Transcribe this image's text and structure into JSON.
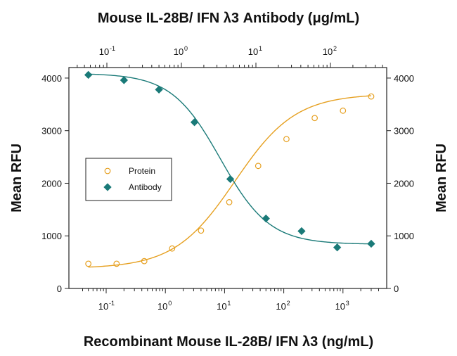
{
  "chart_data": {
    "type": "scatter",
    "title": "Mouse IL-28B/ IFN λ3 Antibody (μg/mL)",
    "xlabel": "Recombinant Mouse IL-28B/ IFN λ3 (ng/mL)",
    "ylabel": "Mean RFU",
    "ylabel_right": "Mean RFU",
    "x_scale": "log",
    "x_ticks": [
      {
        "base": "10",
        "exp": "-1",
        "value": 0.1
      },
      {
        "base": "10",
        "exp": "0",
        "value": 1
      },
      {
        "base": "10",
        "exp": "1",
        "value": 10
      },
      {
        "base": "10",
        "exp": "2",
        "value": 100
      },
      {
        "base": "10",
        "exp": "3",
        "value": 1000
      }
    ],
    "x2_ticks": [
      {
        "base": "10",
        "exp": "-1",
        "value": 0.1
      },
      {
        "base": "10",
        "exp": "0",
        "value": 1
      },
      {
        "base": "10",
        "exp": "1",
        "value": 10
      },
      {
        "base": "10",
        "exp": "2",
        "value": 100
      }
    ],
    "y_ticks": [
      "0",
      "1000",
      "2000",
      "3000",
      "4000"
    ],
    "y_tick_values": [
      0,
      1000,
      2000,
      3000,
      4000
    ],
    "ylim": [
      0,
      4200
    ],
    "grid": false,
    "legend_position": "center-left",
    "series": [
      {
        "name": "Protein",
        "marker": "open-circle",
        "color": "#e6a020",
        "x": [
          0.05,
          0.15,
          0.44,
          1.3,
          4,
          12,
          37,
          111,
          333,
          1000,
          3000
        ],
        "y": [
          470,
          470,
          520,
          760,
          1100,
          1640,
          2330,
          2840,
          3240,
          3380,
          3650
        ],
        "fit": {
          "bottom": 380,
          "top": 3700,
          "ec50": 15,
          "hill": 0.85
        }
      },
      {
        "name": "Antibody",
        "marker": "filled-diamond",
        "color": "#1a7a78",
        "x": [
          0.05,
          0.2,
          0.78,
          3.1,
          12.5,
          50,
          200,
          800,
          3000
        ],
        "y": [
          4060,
          3960,
          3780,
          3160,
          2080,
          1330,
          1090,
          780,
          850
        ],
        "fit": {
          "bottom": 840,
          "top": 4090,
          "ec50": 8.5,
          "hill": 1.05
        }
      }
    ]
  }
}
